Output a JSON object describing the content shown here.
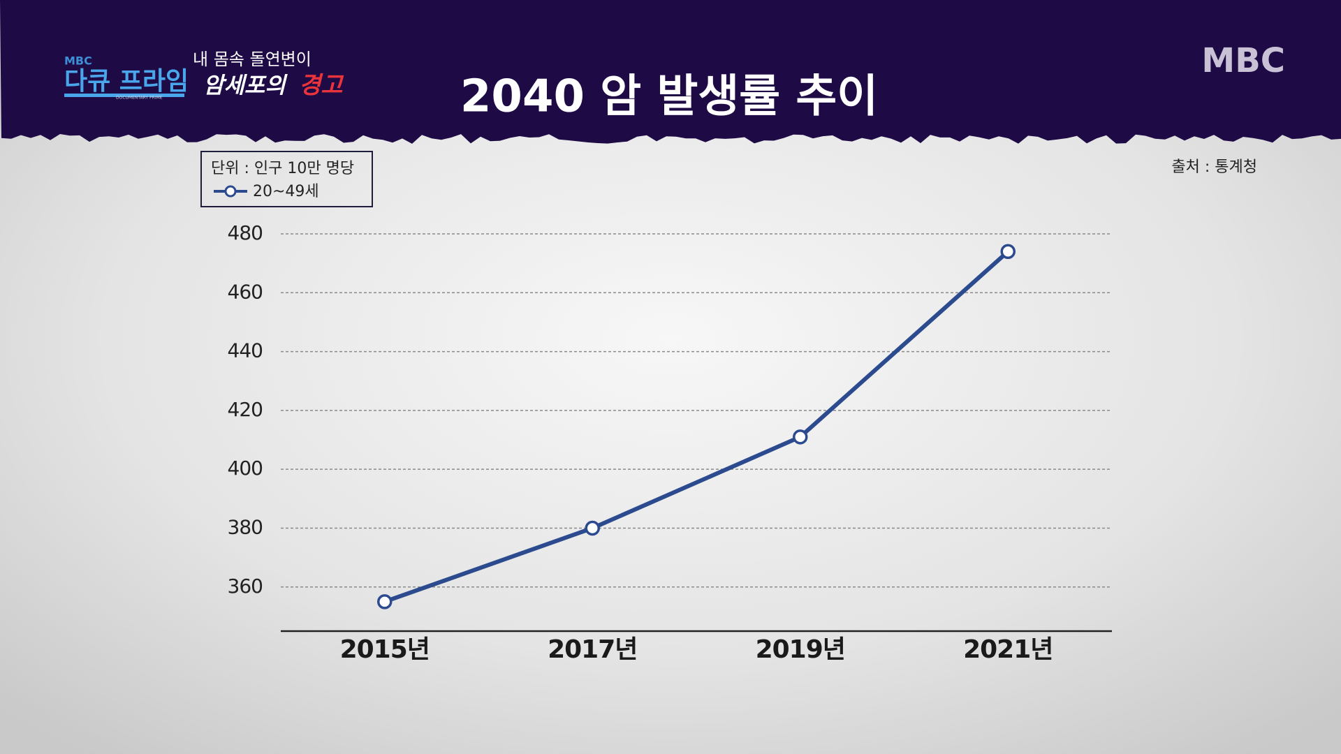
{
  "header": {
    "channel": "MBC",
    "program": "다큐 프라임",
    "program_en": "DOCUMENTARY PRIME",
    "episode_top": "내 몸속 돌연변이",
    "episode_main": "암세포의",
    "episode_accent": "경고",
    "logo": "MBC"
  },
  "chart_data": {
    "type": "line",
    "title": "2040 암 발생률 추이",
    "unit_note": "단위 : 인구 10만 명당",
    "source": "출처 : 통계청",
    "categories": [
      "2015년",
      "2017년",
      "2019년",
      "2021년"
    ],
    "series": [
      {
        "name": "20~49세",
        "color": "#2c4b8f",
        "values": [
          355,
          380,
          411,
          474
        ]
      }
    ],
    "ylim": [
      345,
      480
    ],
    "yticks": [
      360,
      380,
      400,
      420,
      440,
      460,
      480
    ],
    "grid": true
  }
}
